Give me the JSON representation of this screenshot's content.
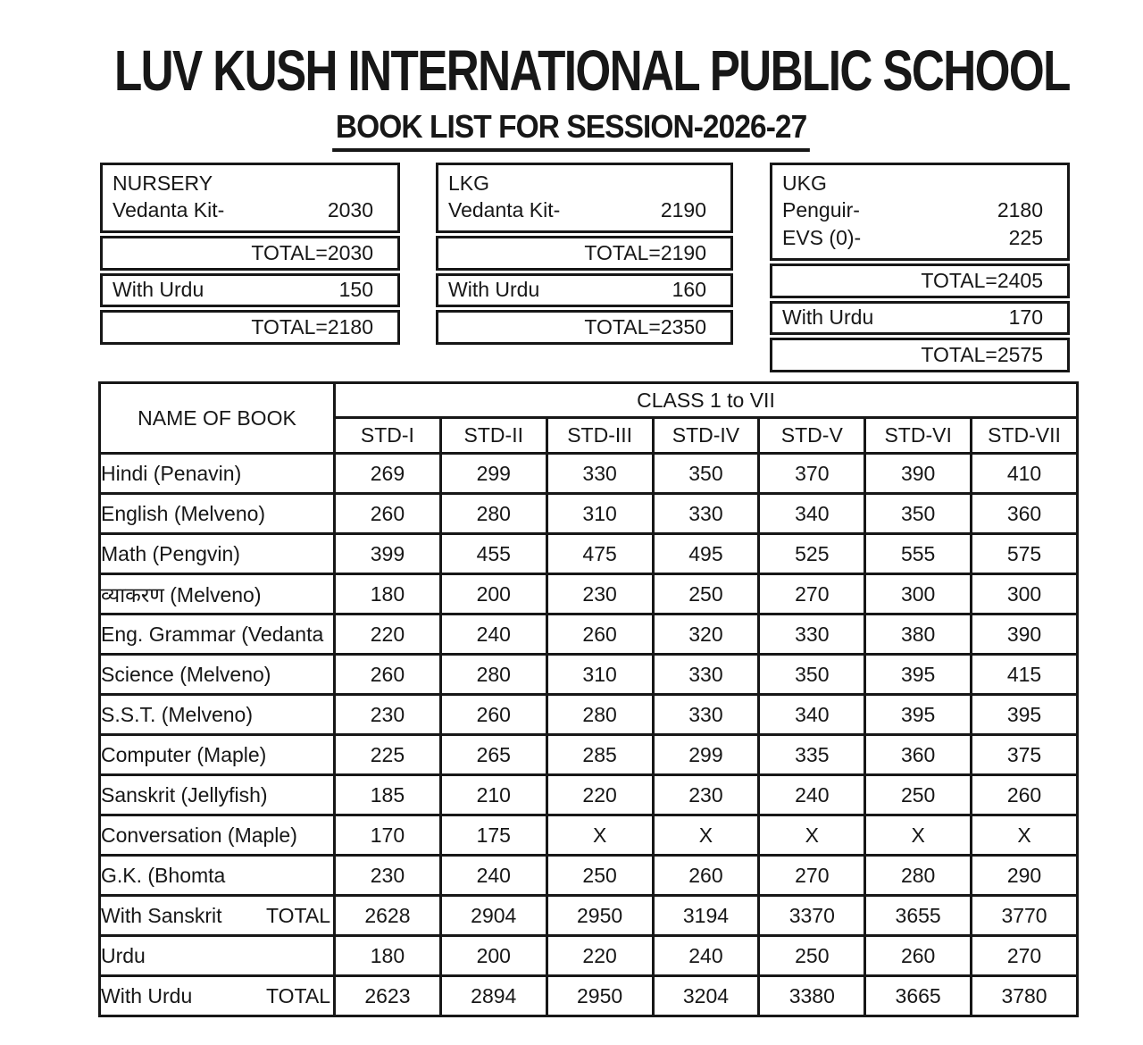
{
  "header": {
    "school_name": "LUV KUSH INTERNATIONAL PUBLIC SCHOOL",
    "subtitle": "BOOK LIST FOR SESSION-2026-27"
  },
  "kits": [
    {
      "name": "NURSERY",
      "items": [
        {
          "label": "Vedanta Kit-",
          "value": "2030"
        }
      ],
      "total": "TOTAL=2030",
      "urdu": {
        "label": "With Urdu",
        "value": "150"
      },
      "grand_total": "TOTAL=2180"
    },
    {
      "name": "LKG",
      "items": [
        {
          "label": "Vedanta Kit-",
          "value": "2190"
        }
      ],
      "total": "TOTAL=2190",
      "urdu": {
        "label": "With Urdu",
        "value": "160"
      },
      "grand_total": "TOTAL=2350"
    },
    {
      "name": "UKG",
      "items": [
        {
          "label": "Penguir-",
          "value": "2180"
        },
        {
          "label": "EVS (0)-",
          "value": "225"
        }
      ],
      "total": "TOTAL=2405",
      "urdu": {
        "label": "With Urdu",
        "value": "170"
      },
      "grand_total": "TOTAL=2575"
    }
  ],
  "book_table": {
    "name_header": "NAME OF BOOK",
    "class_header": "CLASS 1 to VII",
    "columns": [
      "STD-I",
      "STD-II",
      "STD-III",
      "STD-IV",
      "STD-V",
      "STD-VI",
      "STD-VII"
    ],
    "rows": [
      {
        "name": "Hindi (Penavin)",
        "values": [
          "269",
          "299",
          "330",
          "350",
          "370",
          "390",
          "410"
        ]
      },
      {
        "name": "English (Melveno)",
        "values": [
          "260",
          "280",
          "310",
          "330",
          "340",
          "350",
          "360"
        ]
      },
      {
        "name": "Math (Pengvin)",
        "values": [
          "399",
          "455",
          "475",
          "495",
          "525",
          "555",
          "575"
        ]
      },
      {
        "name": "व्याकरण  (Melveno)",
        "values": [
          "180",
          "200",
          "230",
          "250",
          "270",
          "300",
          "300"
        ]
      },
      {
        "name": "Eng. Grammar (Vedanta",
        "values": [
          "220",
          "240",
          "260",
          "320",
          "330",
          "380",
          "390"
        ]
      },
      {
        "name": "Science (Melveno)",
        "values": [
          "260",
          "280",
          "310",
          "330",
          "350",
          "395",
          "415"
        ]
      },
      {
        "name": "S.S.T. (Melveno)",
        "values": [
          "230",
          "260",
          "280",
          "330",
          "340",
          "395",
          "395"
        ]
      },
      {
        "name": "Computer (Maple)",
        "values": [
          "225",
          "265",
          "285",
          "299",
          "335",
          "360",
          "375"
        ]
      },
      {
        "name": "Sanskrit (Jellyfish)",
        "values": [
          "185",
          "210",
          "220",
          "230",
          "240",
          "250",
          "260"
        ]
      },
      {
        "name": "Conversation (Maple)",
        "values": [
          "170",
          "175",
          "X",
          "X",
          "X",
          "X",
          "X"
        ]
      },
      {
        "name": "G.K. (Bhomta",
        "values": [
          "230",
          "240",
          "250",
          "260",
          "270",
          "280",
          "290"
        ]
      },
      {
        "name": "With Sanskrit",
        "total_label": "TOTAL",
        "values": [
          "2628",
          "2904",
          "2950",
          "3194",
          "3370",
          "3655",
          "3770"
        ]
      },
      {
        "name": "Urdu",
        "values": [
          "180",
          "200",
          "220",
          "240",
          "250",
          "260",
          "270"
        ]
      },
      {
        "name": "With Urdu",
        "total_label": "TOTAL",
        "values": [
          "2623",
          "2894",
          "2950",
          "3204",
          "3380",
          "3665",
          "3780"
        ]
      }
    ]
  }
}
